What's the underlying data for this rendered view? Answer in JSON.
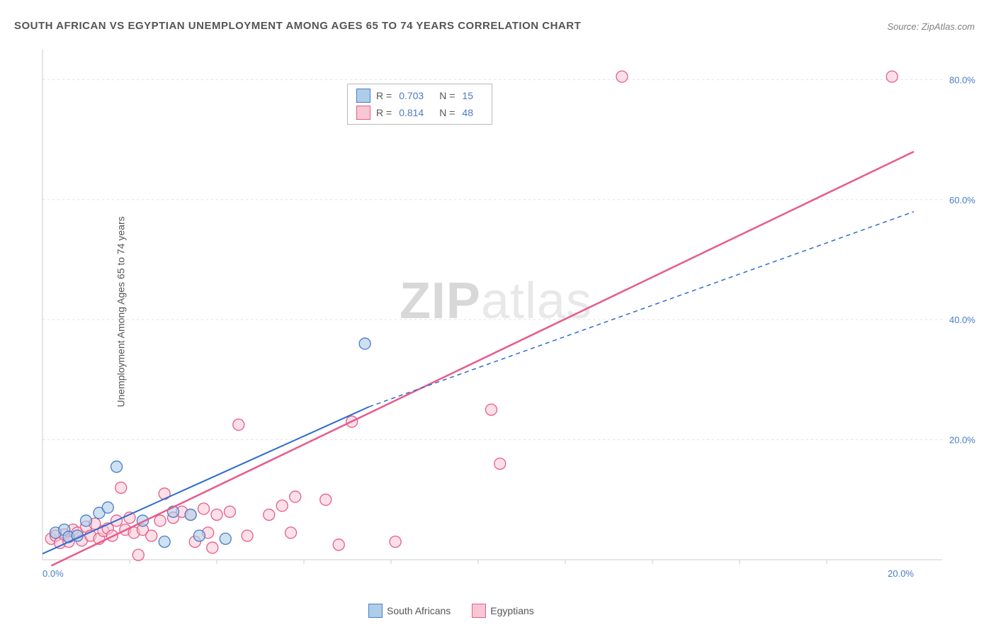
{
  "title": "SOUTH AFRICAN VS EGYPTIAN UNEMPLOYMENT AMONG AGES 65 TO 74 YEARS CORRELATION CHART",
  "source": "Source: ZipAtlas.com",
  "y_axis_label": "Unemployment Among Ages 65 to 74 years",
  "watermark_bold": "ZIP",
  "watermark_light": "atlas",
  "chart": {
    "type": "scatter",
    "xlim": [
      0,
      20
    ],
    "ylim": [
      0,
      85
    ],
    "x_ticks": [
      0,
      20
    ],
    "x_tick_labels": [
      "0.0%",
      "20.0%"
    ],
    "y_ticks": [
      20,
      40,
      60,
      80
    ],
    "y_tick_labels": [
      "20.0%",
      "40.0%",
      "60.0%",
      "80.0%"
    ],
    "background_color": "#ffffff",
    "grid_color": "#e0e0e0",
    "axis_color": "#cccccc",
    "tick_label_color": "#4a7bc8",
    "marker_radius": 8,
    "series": [
      {
        "name": "South Africans",
        "marker_fill": "#aecde8",
        "marker_stroke": "#4a7bc8",
        "trend_color": "#2e6bd0",
        "trend_solid": [
          [
            0.0,
            1.0
          ],
          [
            7.5,
            25.5
          ]
        ],
        "trend_dash": [
          [
            7.5,
            25.5
          ],
          [
            20.0,
            58.0
          ]
        ],
        "R": "0.703",
        "N": "15",
        "points": [
          [
            0.3,
            4.5
          ],
          [
            0.5,
            5.0
          ],
          [
            0.6,
            3.8
          ],
          [
            0.8,
            4.0
          ],
          [
            1.0,
            6.5
          ],
          [
            1.3,
            7.8
          ],
          [
            1.5,
            8.7
          ],
          [
            1.7,
            15.5
          ],
          [
            2.3,
            6.5
          ],
          [
            2.8,
            3.0
          ],
          [
            3.0,
            8.0
          ],
          [
            3.4,
            7.5
          ],
          [
            3.6,
            4.0
          ],
          [
            4.2,
            3.5
          ],
          [
            7.4,
            36.0
          ]
        ]
      },
      {
        "name": "Egyptians",
        "marker_fill": "#f9c7d4",
        "marker_stroke": "#e75b8a",
        "trend_color": "#e75b8a",
        "trend_solid": [
          [
            0.2,
            -1.0
          ],
          [
            20.0,
            68.0
          ]
        ],
        "R": "0.814",
        "N": "48",
        "points": [
          [
            0.2,
            3.5
          ],
          [
            0.3,
            4.0
          ],
          [
            0.4,
            2.8
          ],
          [
            0.5,
            4.2
          ],
          [
            0.6,
            3.0
          ],
          [
            0.7,
            5.0
          ],
          [
            0.8,
            4.5
          ],
          [
            0.9,
            3.2
          ],
          [
            1.0,
            5.5
          ],
          [
            1.1,
            4.0
          ],
          [
            1.2,
            6.0
          ],
          [
            1.3,
            3.5
          ],
          [
            1.4,
            4.8
          ],
          [
            1.5,
            5.2
          ],
          [
            1.6,
            4.0
          ],
          [
            1.7,
            6.5
          ],
          [
            1.8,
            12.0
          ],
          [
            1.9,
            5.0
          ],
          [
            2.0,
            7.0
          ],
          [
            2.1,
            4.5
          ],
          [
            2.2,
            0.8
          ],
          [
            2.3,
            5.0
          ],
          [
            2.5,
            4.0
          ],
          [
            2.7,
            6.5
          ],
          [
            2.8,
            11.0
          ],
          [
            3.0,
            7.0
          ],
          [
            3.2,
            8.0
          ],
          [
            3.4,
            7.5
          ],
          [
            3.5,
            3.0
          ],
          [
            3.7,
            8.5
          ],
          [
            3.8,
            4.5
          ],
          [
            3.9,
            2.0
          ],
          [
            4.0,
            7.5
          ],
          [
            4.3,
            8.0
          ],
          [
            4.5,
            22.5
          ],
          [
            4.7,
            4.0
          ],
          [
            5.2,
            7.5
          ],
          [
            5.5,
            9.0
          ],
          [
            5.7,
            4.5
          ],
          [
            5.8,
            10.5
          ],
          [
            6.5,
            10.0
          ],
          [
            6.8,
            2.5
          ],
          [
            7.1,
            23.0
          ],
          [
            8.1,
            3.0
          ],
          [
            10.3,
            25.0
          ],
          [
            10.5,
            16.0
          ],
          [
            13.3,
            80.5
          ],
          [
            19.5,
            80.5
          ]
        ]
      }
    ]
  },
  "legend": {
    "items": [
      "South Africans",
      "Egyptians"
    ]
  }
}
